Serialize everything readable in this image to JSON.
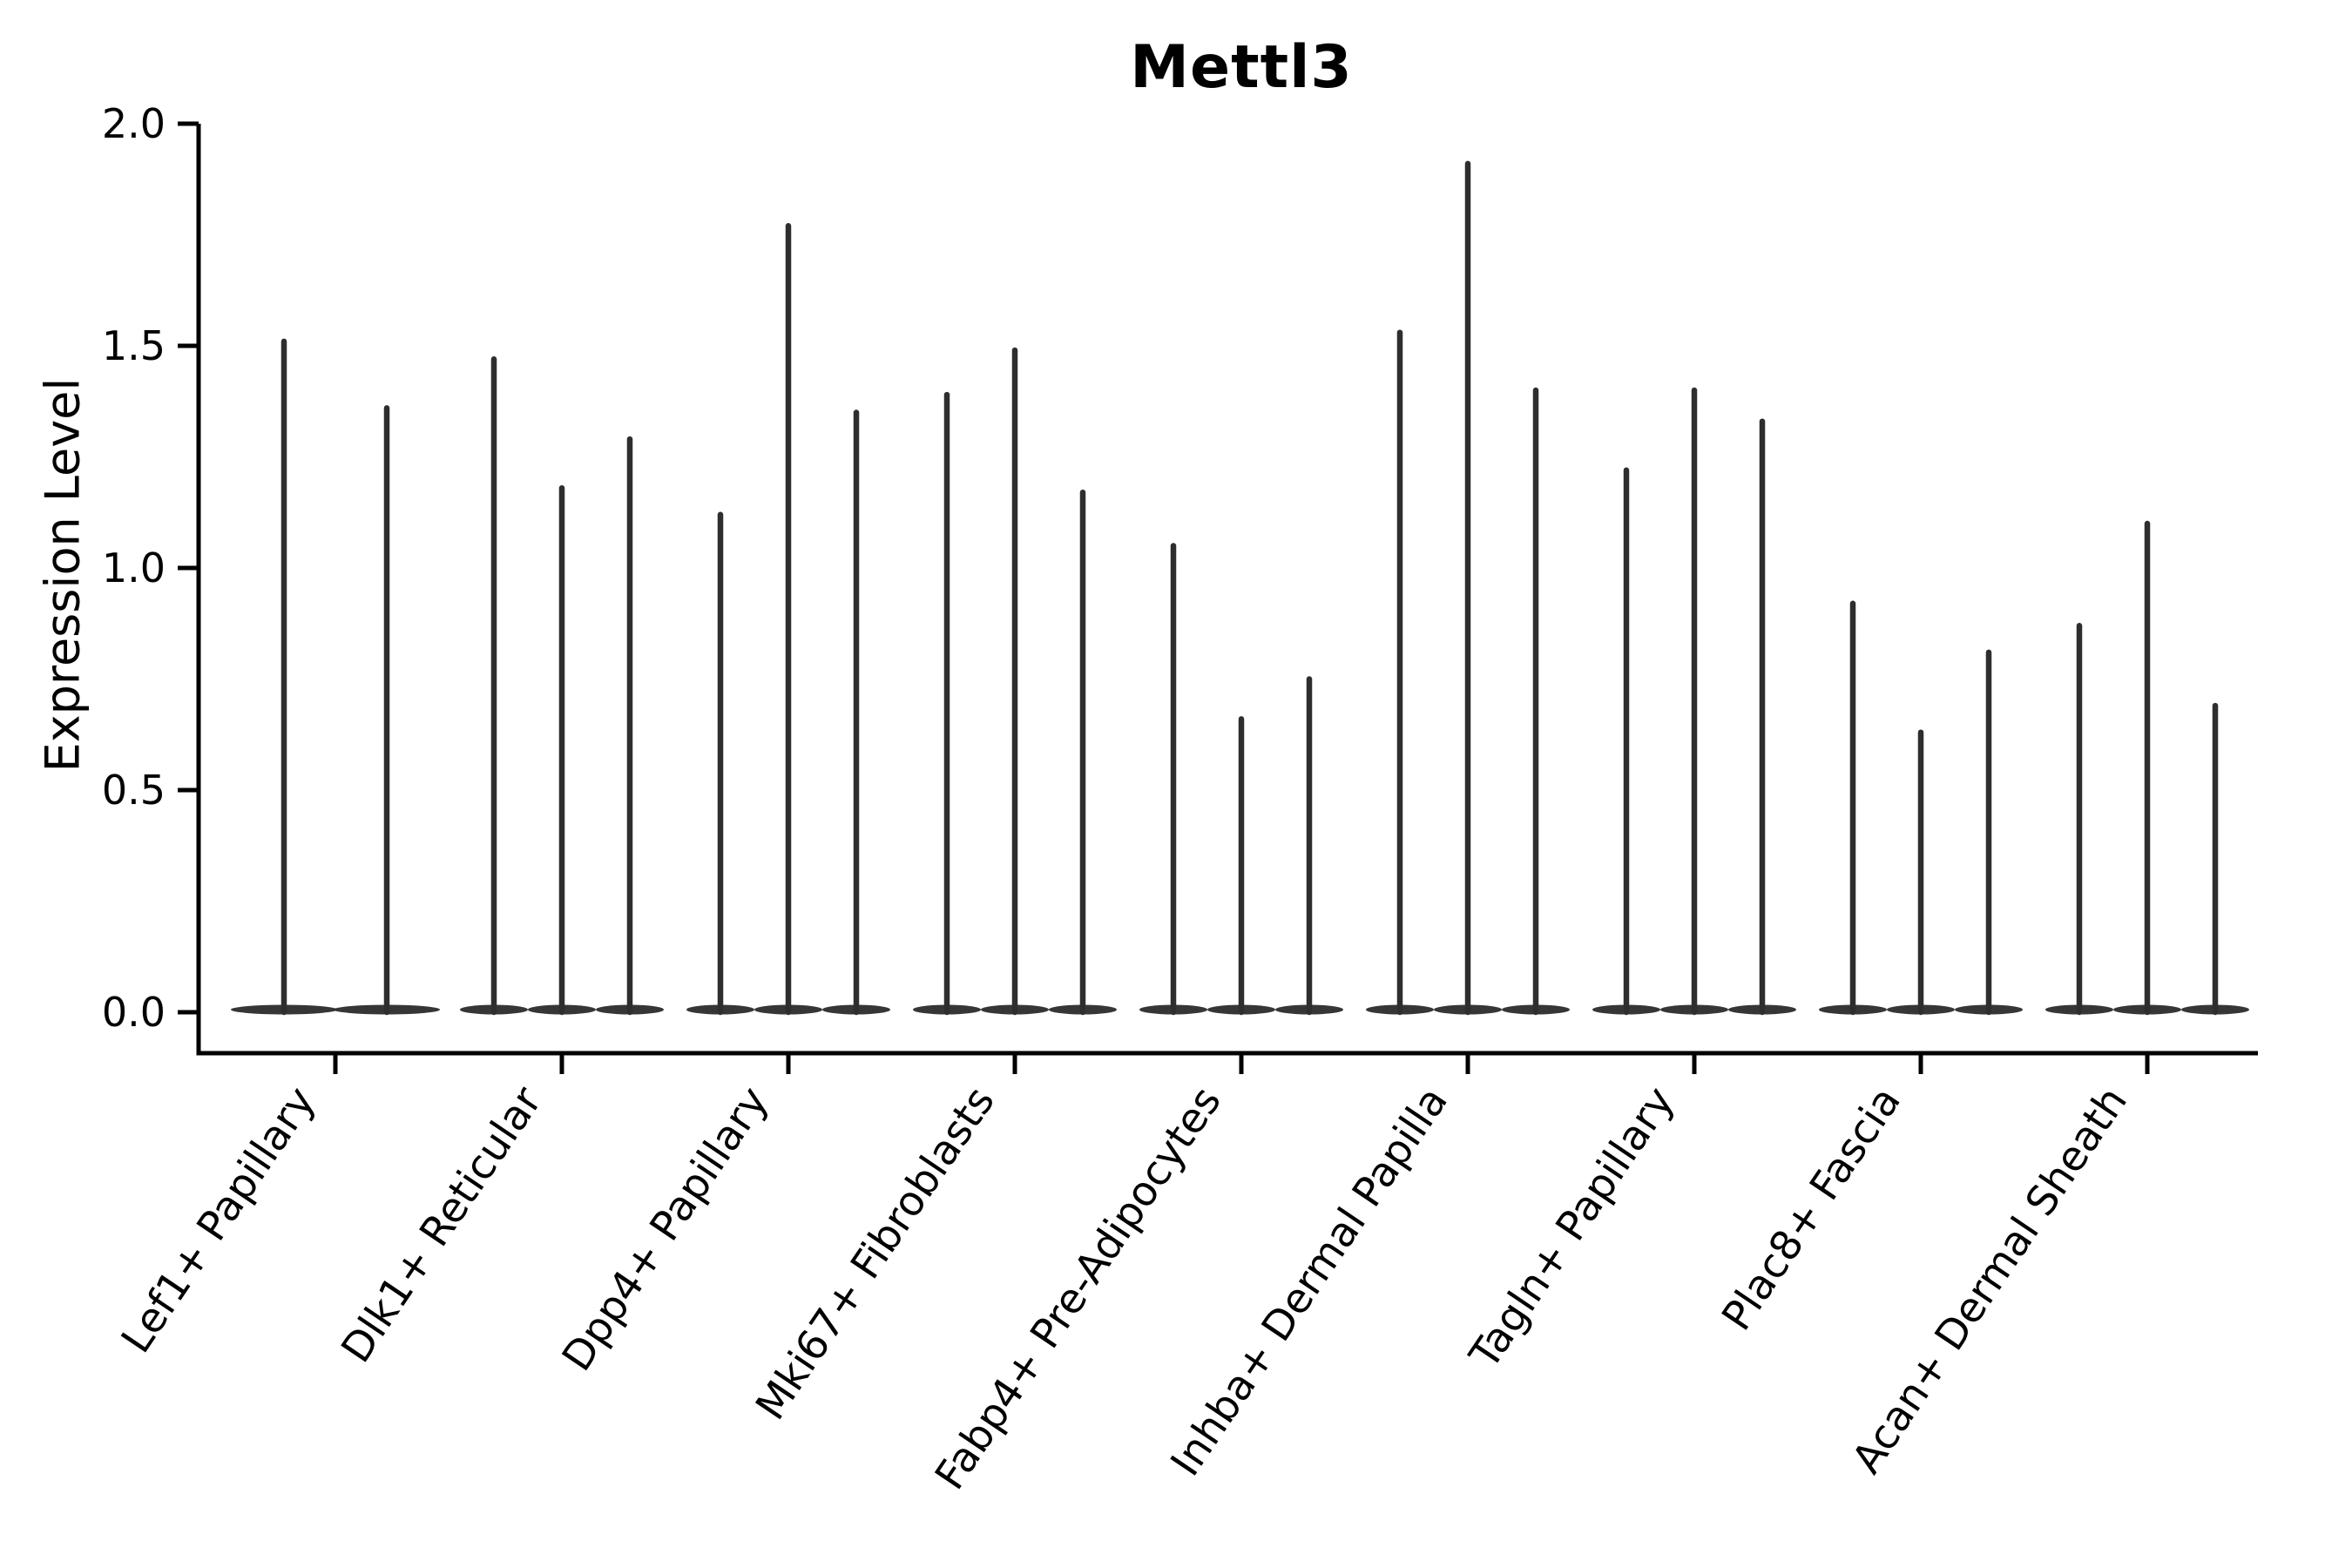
{
  "chart_data": {
    "type": "violin",
    "title": "Mettl3",
    "xlabel": "",
    "ylabel": "Expression Level",
    "ylim": [
      0.0,
      2.0
    ],
    "ytick_labels": [
      "0.0",
      "0.5",
      "1.0",
      "1.5",
      "2.0"
    ],
    "ytick_values": [
      0.0,
      0.5,
      1.0,
      1.5,
      2.0
    ],
    "grid": false,
    "legend": "none",
    "categories": [
      "Lef1+ Papillary",
      "Dlk1+ Reticular",
      "Dpp4+ Papillary",
      "Mki67+ Fibroblasts",
      "Fabp4+ Pre-Adipocytes",
      "Inhba+ Dermal Papilla",
      "Tagln+ Papillary",
      "Plac8+ Fascia",
      "Acan+ Dermal Sheath"
    ],
    "groups": [
      {
        "category": "Lef1+ Papillary",
        "violin_max_values": [
          1.51,
          1.36
        ]
      },
      {
        "category": "Dlk1+ Reticular",
        "violin_max_values": [
          1.47,
          1.18,
          1.29
        ]
      },
      {
        "category": "Dpp4+ Papillary",
        "violin_max_values": [
          1.12,
          1.77,
          1.35
        ]
      },
      {
        "category": "Mki67+ Fibroblasts",
        "violin_max_values": [
          1.39,
          1.49,
          1.17
        ]
      },
      {
        "category": "Fabp4+ Pre-Adipocytes",
        "violin_max_values": [
          1.05,
          0.66,
          0.75
        ]
      },
      {
        "category": "Inhba+ Dermal Papilla",
        "violin_max_values": [
          1.53,
          1.91,
          1.4
        ]
      },
      {
        "category": "Tagln+ Papillary",
        "violin_max_values": [
          1.22,
          1.4,
          1.33
        ]
      },
      {
        "category": "Plac8+ Fascia",
        "violin_max_values": [
          0.92,
          0.63,
          0.81
        ]
      },
      {
        "category": "Acan+ Dermal Sheath",
        "violin_max_values": [
          0.87,
          1.1,
          0.69
        ]
      }
    ],
    "violin_body_description": "each violin collapses to a thin vertical spike with a flat wide base at expression 0",
    "colors": {
      "violin_stroke": "#2e2e2e",
      "axis": "#000000",
      "text": "#000000",
      "background": "#ffffff"
    }
  }
}
